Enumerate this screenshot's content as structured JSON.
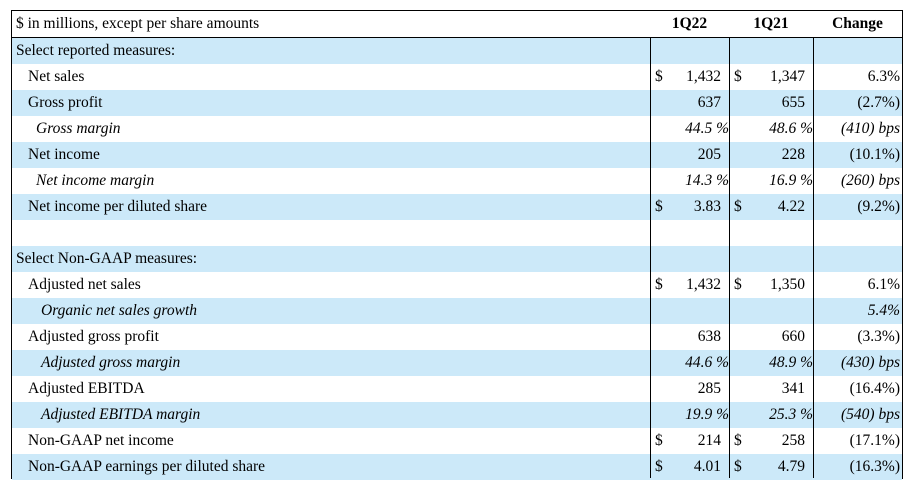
{
  "header": {
    "label": "$ in millions, except per share amounts",
    "col_a": "1Q22",
    "col_b": "1Q21",
    "col_c": "Change"
  },
  "rows": [
    {
      "label": "Select reported measures:",
      "cur_a": "",
      "a": "",
      "cur_b": "",
      "b": "",
      "c": ""
    },
    {
      "label": "Net sales",
      "cur_a": "$",
      "a": "1,432",
      "cur_b": "$",
      "b": "1,347",
      "c": "6.3%"
    },
    {
      "label": "Gross profit",
      "cur_a": "",
      "a": "637",
      "cur_b": "",
      "b": "655",
      "c": "(2.7%)"
    },
    {
      "label": "Gross margin",
      "cur_a": "",
      "a": "44.5 %",
      "cur_b": "",
      "b": "48.6 %",
      "c": "(410) bps"
    },
    {
      "label": "Net income",
      "cur_a": "",
      "a": "205",
      "cur_b": "",
      "b": "228",
      "c": "(10.1%)"
    },
    {
      "label": "Net income margin",
      "cur_a": "",
      "a": "14.3 %",
      "cur_b": "",
      "b": "16.9 %",
      "c": "(260) bps"
    },
    {
      "label": "Net income per diluted share",
      "cur_a": "$",
      "a": "3.83",
      "cur_b": "$",
      "b": "4.22",
      "c": "(9.2%)"
    },
    {
      "label": "",
      "cur_a": "",
      "a": "",
      "cur_b": "",
      "b": "",
      "c": ""
    },
    {
      "label": "Select Non-GAAP measures:",
      "cur_a": "",
      "a": "",
      "cur_b": "",
      "b": "",
      "c": ""
    },
    {
      "label": "Adjusted net sales",
      "cur_a": "$",
      "a": "1,432",
      "cur_b": "$",
      "b": "1,350",
      "c": "6.1%"
    },
    {
      "label": "Organic net sales growth",
      "cur_a": "",
      "a": "",
      "cur_b": "",
      "b": "",
      "c": "5.4%"
    },
    {
      "label": "Adjusted gross profit",
      "cur_a": "",
      "a": "638",
      "cur_b": "",
      "b": "660",
      "c": "(3.3%)"
    },
    {
      "label": "Adjusted gross margin",
      "cur_a": "",
      "a": "44.6 %",
      "cur_b": "",
      "b": "48.9 %",
      "c": "(430) bps"
    },
    {
      "label": "Adjusted EBITDA",
      "cur_a": "",
      "a": "285",
      "cur_b": "",
      "b": "341",
      "c": "(16.4%)"
    },
    {
      "label": "Adjusted EBITDA margin",
      "cur_a": "",
      "a": "19.9 %",
      "cur_b": "",
      "b": "25.3 %",
      "c": "(540) bps"
    },
    {
      "label": "Non-GAAP net income",
      "cur_a": "$",
      "a": "214",
      "cur_b": "$",
      "b": "258",
      "c": "(17.1%)"
    },
    {
      "label": "Non-GAAP earnings per diluted share",
      "cur_a": "$",
      "a": "4.01",
      "cur_b": "$",
      "b": "4.79",
      "c": "(16.3%)"
    }
  ],
  "colors": {
    "shade": "#cce9f9",
    "border": "#000000"
  }
}
